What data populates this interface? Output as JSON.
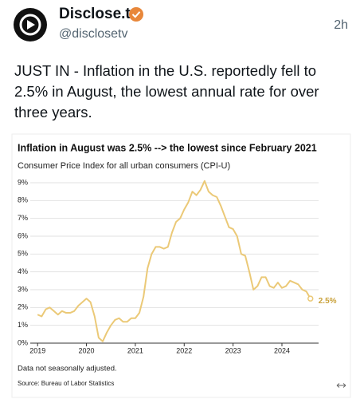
{
  "tweet": {
    "name": "Disclose.tv",
    "handle": "@disclosetv",
    "time": "2h",
    "text_lines": [
      "JUST IN - Inflation in the U.S. reportedly fell to",
      "2.5% in August, the lowest annual rate for over",
      "three years."
    ]
  },
  "chart_data": {
    "type": "line",
    "title": "Inflation in August was 2.5% --> the lowest since February 2021",
    "subtitle": "Consumer Price Index for all urban consumers (CPI-U)",
    "note": "Data not seasonally adjusted.",
    "source": "Source: Bureau of Labor Statistics",
    "x": [
      2019,
      2019.083,
      2019.167,
      2019.25,
      2019.333,
      2019.417,
      2019.5,
      2019.583,
      2019.667,
      2019.75,
      2019.833,
      2019.917,
      2020,
      2020.083,
      2020.167,
      2020.25,
      2020.333,
      2020.417,
      2020.5,
      2020.583,
      2020.667,
      2020.75,
      2020.833,
      2020.917,
      2021,
      2021.083,
      2021.167,
      2021.25,
      2021.333,
      2021.417,
      2021.5,
      2021.583,
      2021.667,
      2021.75,
      2021.833,
      2021.917,
      2022,
      2022.083,
      2022.167,
      2022.25,
      2022.333,
      2022.417,
      2022.5,
      2022.583,
      2022.667,
      2022.75,
      2022.833,
      2022.917,
      2023,
      2023.083,
      2023.167,
      2023.25,
      2023.333,
      2023.417,
      2023.5,
      2023.583,
      2023.667,
      2023.75,
      2023.833,
      2023.917,
      2024,
      2024.083,
      2024.167,
      2024.25,
      2024.333,
      2024.417,
      2024.5,
      2024.583
    ],
    "series": [
      {
        "name": "CPI-U",
        "color": "#ebc977",
        "values": [
          1.6,
          1.5,
          1.9,
          2.0,
          1.8,
          1.6,
          1.8,
          1.7,
          1.7,
          1.8,
          2.1,
          2.3,
          2.5,
          2.3,
          1.5,
          0.3,
          0.1,
          0.6,
          1.0,
          1.3,
          1.4,
          1.2,
          1.2,
          1.4,
          1.4,
          1.7,
          2.6,
          4.2,
          5.0,
          5.4,
          5.4,
          5.3,
          5.4,
          6.2,
          6.8,
          7.0,
          7.5,
          7.9,
          8.5,
          8.3,
          8.6,
          9.1,
          8.5,
          8.3,
          8.2,
          7.7,
          7.1,
          6.5,
          6.4,
          6.0,
          5.0,
          4.9,
          4.0,
          3.0,
          3.2,
          3.7,
          3.7,
          3.2,
          3.1,
          3.4,
          3.1,
          3.2,
          3.5,
          3.4,
          3.3,
          3.0,
          2.9,
          2.5
        ]
      }
    ],
    "annotations": [
      {
        "label": "2.5%",
        "x": 2024.583,
        "y": 2.5,
        "color": "#c9a13a"
      }
    ],
    "xlim": [
      2018.85,
      2024.75
    ],
    "xticks": [
      2019,
      2020,
      2021,
      2022,
      2023,
      2024
    ],
    "ylim": [
      0,
      9
    ],
    "yticks": [
      {
        "value": 0,
        "label": "0%"
      },
      {
        "value": 1,
        "label": "1%"
      },
      {
        "value": 2,
        "label": "2%"
      },
      {
        "value": 3,
        "label": "3%"
      },
      {
        "value": 4,
        "label": "4%"
      },
      {
        "value": 5,
        "label": "5%"
      },
      {
        "value": 6,
        "label": "6%"
      },
      {
        "value": 7,
        "label": "7%"
      },
      {
        "value": 8,
        "label": "8%"
      },
      {
        "value": 9,
        "label": "9%"
      }
    ],
    "grid": true
  }
}
